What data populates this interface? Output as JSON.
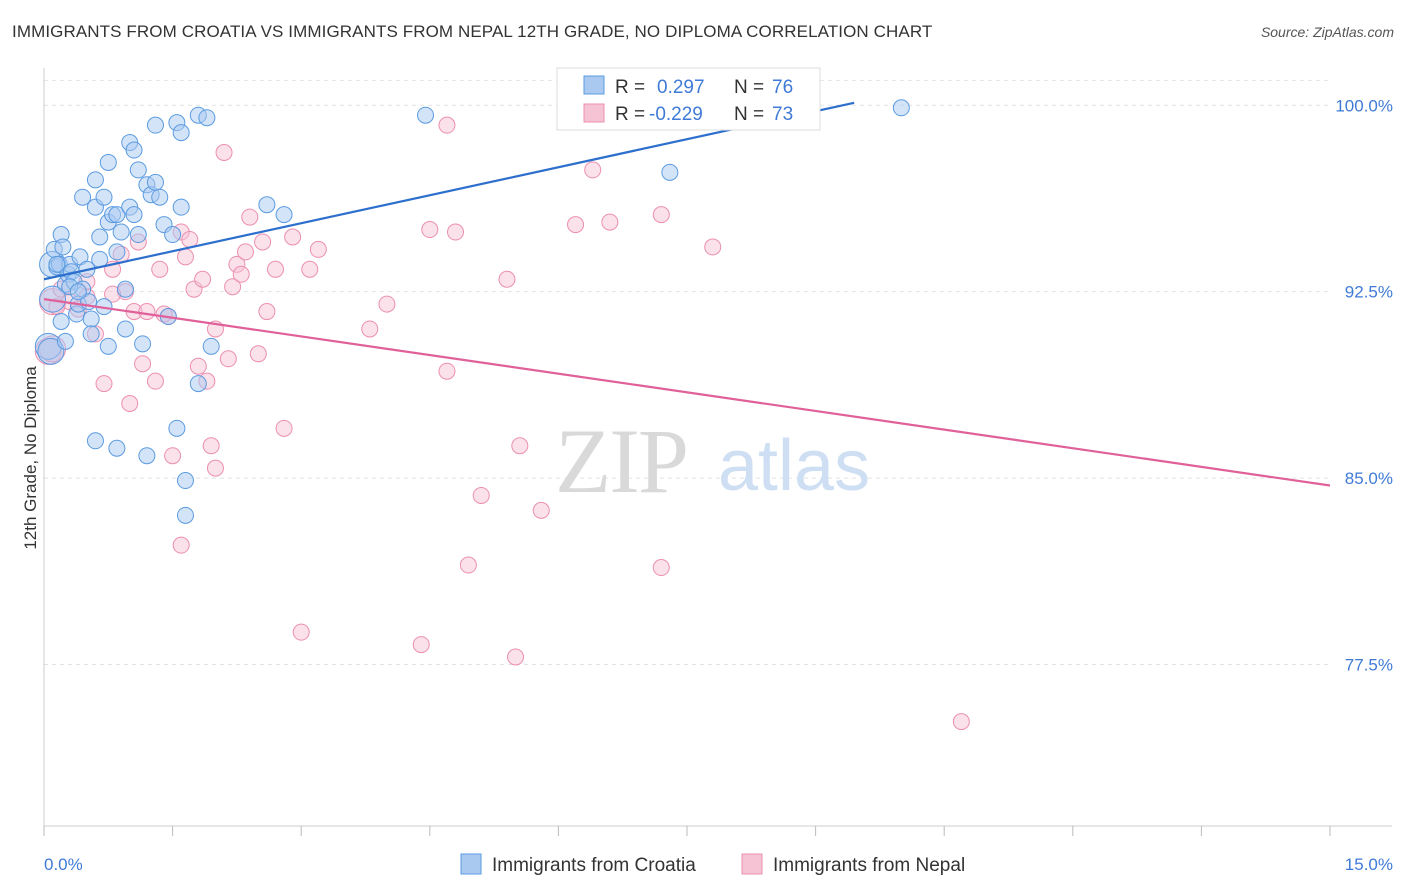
{
  "title": "IMMIGRANTS FROM CROATIA VS IMMIGRANTS FROM NEPAL 12TH GRADE, NO DIPLOMA CORRELATION CHART",
  "source": "Source: ZipAtlas.com",
  "watermark": {
    "zip": "ZIP",
    "atlas": "atlas"
  },
  "colors": {
    "croatia": "#5b9be0",
    "croatia_fill": "#a9c9f1",
    "croatia_line": "#2d6fcc",
    "nepal": "#ec8fb0",
    "nepal_fill": "#f6c3d5",
    "nepal_line": "#e0609a",
    "axis_text": "#3f7bd6",
    "grid": "#e2e2e2"
  },
  "legend_stats": [
    {
      "r_label": "R =",
      "r": "0.297",
      "n_label": "N =",
      "n": "76"
    },
    {
      "r_label": "R =",
      "r": "-0.229",
      "n_label": "N =",
      "n": "73"
    }
  ],
  "chart_data": {
    "type": "scatter",
    "title": "IMMIGRANTS FROM CROATIA VS IMMIGRANTS FROM NEPAL 12TH GRADE, NO DIPLOMA CORRELATION CHART",
    "xlabel": "",
    "ylabel": "12th Grade, No Diploma",
    "xlim": [
      0,
      15
    ],
    "ylim": [
      71,
      101.5
    ],
    "x_tick_labels": [
      "0.0%",
      "15.0%"
    ],
    "y_ticks": [
      77.5,
      85.0,
      92.5,
      100.0
    ],
    "y_tick_labels": [
      "77.5%",
      "85.0%",
      "92.5%",
      "100.0%"
    ],
    "legend_position": "bottom",
    "series": [
      {
        "name": "Immigrants from Croatia",
        "r": 0.297,
        "n": 76,
        "trend": {
          "x": [
            0,
            9.45
          ],
          "y": [
            93.0,
            100.1
          ]
        },
        "points": [
          [
            0.05,
            90.3
          ],
          [
            0.08,
            90.1
          ],
          [
            0.1,
            93.6
          ],
          [
            0.12,
            94.2
          ],
          [
            0.15,
            93.5
          ],
          [
            0.18,
            93.6
          ],
          [
            0.2,
            94.8
          ],
          [
            0.22,
            94.3
          ],
          [
            0.25,
            92.8
          ],
          [
            0.28,
            93.2
          ],
          [
            0.3,
            93.6
          ],
          [
            0.32,
            93.3
          ],
          [
            0.35,
            92.9
          ],
          [
            0.38,
            91.6
          ],
          [
            0.4,
            92.0
          ],
          [
            0.42,
            93.9
          ],
          [
            0.45,
            92.6
          ],
          [
            0.5,
            93.4
          ],
          [
            0.52,
            92.1
          ],
          [
            0.55,
            91.4
          ],
          [
            0.6,
            95.9
          ],
          [
            0.65,
            94.7
          ],
          [
            0.7,
            96.3
          ],
          [
            0.75,
            95.3
          ],
          [
            0.8,
            95.6
          ],
          [
            0.85,
            95.6
          ],
          [
            0.9,
            94.9
          ],
          [
            0.95,
            92.6
          ],
          [
            1.0,
            95.9
          ],
          [
            1.05,
            95.6
          ],
          [
            1.1,
            94.8
          ],
          [
            1.2,
            96.8
          ],
          [
            1.25,
            96.4
          ],
          [
            1.3,
            96.9
          ],
          [
            1.35,
            96.3
          ],
          [
            1.4,
            95.2
          ],
          [
            1.5,
            94.8
          ],
          [
            1.6,
            95.9
          ],
          [
            0.6,
            97.0
          ],
          [
            0.75,
            97.7
          ],
          [
            1.0,
            98.5
          ],
          [
            1.05,
            98.2
          ],
          [
            1.1,
            97.4
          ],
          [
            1.3,
            99.2
          ],
          [
            1.55,
            99.3
          ],
          [
            1.6,
            98.9
          ],
          [
            1.8,
            99.6
          ],
          [
            1.9,
            99.5
          ],
          [
            0.45,
            96.3
          ],
          [
            0.85,
            94.1
          ],
          [
            0.95,
            91.0
          ],
          [
            1.15,
            90.4
          ],
          [
            1.45,
            91.5
          ],
          [
            1.95,
            90.3
          ],
          [
            1.8,
            88.8
          ],
          [
            0.25,
            90.5
          ],
          [
            0.6,
            86.5
          ],
          [
            0.85,
            86.2
          ],
          [
            1.2,
            85.9
          ],
          [
            1.55,
            87.0
          ],
          [
            1.65,
            84.9
          ],
          [
            1.65,
            83.5
          ],
          [
            2.6,
            96.0
          ],
          [
            2.8,
            95.6
          ],
          [
            4.45,
            99.6
          ],
          [
            7.3,
            97.3
          ],
          [
            10.0,
            99.9
          ],
          [
            0.3,
            92.7
          ],
          [
            0.55,
            90.8
          ],
          [
            0.75,
            90.3
          ],
          [
            0.2,
            91.3
          ],
          [
            0.1,
            92.2
          ],
          [
            0.65,
            93.8
          ],
          [
            0.15,
            93.6
          ],
          [
            0.4,
            92.5
          ],
          [
            0.7,
            91.9
          ]
        ]
      },
      {
        "name": "Immigrants from Nepal",
        "r": -0.229,
        "n": 73,
        "trend": {
          "x": [
            0,
            15
          ],
          "y": [
            92.2,
            84.7
          ]
        },
        "points": [
          [
            0.05,
            90.1
          ],
          [
            0.1,
            90.2
          ],
          [
            0.1,
            92.1
          ],
          [
            0.2,
            92.6
          ],
          [
            0.3,
            92.1
          ],
          [
            0.4,
            91.8
          ],
          [
            0.5,
            92.3
          ],
          [
            0.6,
            90.8
          ],
          [
            0.7,
            88.8
          ],
          [
            0.8,
            93.4
          ],
          [
            0.9,
            94.0
          ],
          [
            0.95,
            92.5
          ],
          [
            1.0,
            88.0
          ],
          [
            1.05,
            91.7
          ],
          [
            1.1,
            94.5
          ],
          [
            1.15,
            89.6
          ],
          [
            1.2,
            91.7
          ],
          [
            1.3,
            88.9
          ],
          [
            1.35,
            93.4
          ],
          [
            1.45,
            91.5
          ],
          [
            1.5,
            85.9
          ],
          [
            1.6,
            94.9
          ],
          [
            1.65,
            93.9
          ],
          [
            1.7,
            94.6
          ],
          [
            1.75,
            92.6
          ],
          [
            1.8,
            89.5
          ],
          [
            1.85,
            93.0
          ],
          [
            1.9,
            88.9
          ],
          [
            1.95,
            86.3
          ],
          [
            2.0,
            85.4
          ],
          [
            2.1,
            98.1
          ],
          [
            2.15,
            89.8
          ],
          [
            2.2,
            92.7
          ],
          [
            2.25,
            93.6
          ],
          [
            2.3,
            93.2
          ],
          [
            2.35,
            94.1
          ],
          [
            2.4,
            95.5
          ],
          [
            2.5,
            90.0
          ],
          [
            2.55,
            94.5
          ],
          [
            2.6,
            91.7
          ],
          [
            2.7,
            93.4
          ],
          [
            2.8,
            87.0
          ],
          [
            2.9,
            94.7
          ],
          [
            3.0,
            78.8
          ],
          [
            3.1,
            93.4
          ],
          [
            3.2,
            94.2
          ],
          [
            3.8,
            91.0
          ],
          [
            4.0,
            92.0
          ],
          [
            4.4,
            78.3
          ],
          [
            4.5,
            95.0
          ],
          [
            4.7,
            99.2
          ],
          [
            4.7,
            89.3
          ],
          [
            4.8,
            94.9
          ],
          [
            4.95,
            81.5
          ],
          [
            5.1,
            84.3
          ],
          [
            5.4,
            93.0
          ],
          [
            5.5,
            77.8
          ],
          [
            5.55,
            86.3
          ],
          [
            5.8,
            83.7
          ],
          [
            6.1,
            99.4
          ],
          [
            6.2,
            95.2
          ],
          [
            6.4,
            97.4
          ],
          [
            6.6,
            95.3
          ],
          [
            7.2,
            81.4
          ],
          [
            7.2,
            95.6
          ],
          [
            7.8,
            94.3
          ],
          [
            10.7,
            75.2
          ],
          [
            1.6,
            82.3
          ],
          [
            0.15,
            91.9
          ],
          [
            0.5,
            92.9
          ],
          [
            0.8,
            92.4
          ],
          [
            1.4,
            91.6
          ],
          [
            2.0,
            91.0
          ]
        ]
      }
    ]
  }
}
